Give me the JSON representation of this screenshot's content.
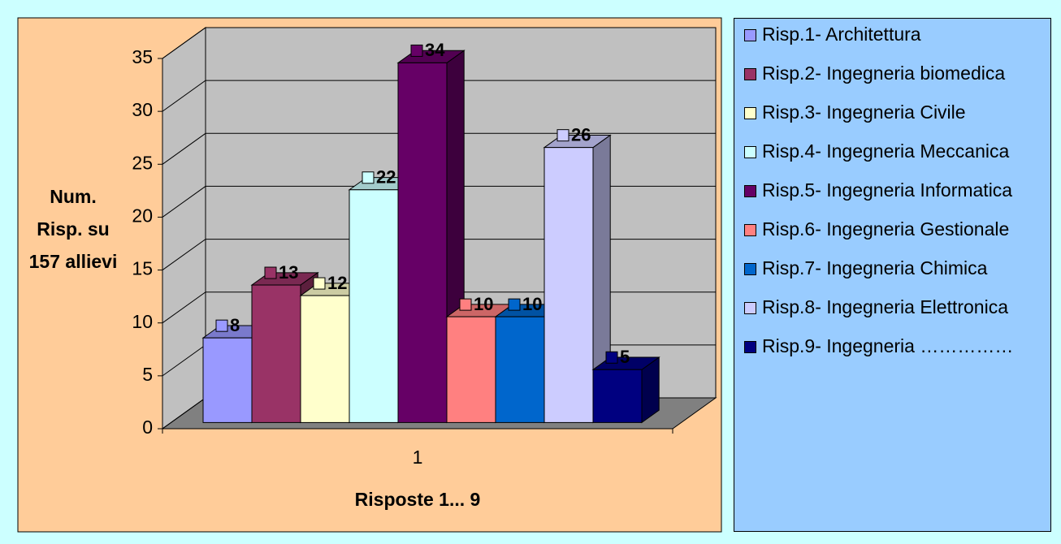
{
  "chart_data": {
    "type": "bar3d",
    "y_label": "Num. Risp. su 157 allievi",
    "x_label": "Risposte 1... 9",
    "categories": [
      "1"
    ],
    "ylim": [
      0,
      35
    ],
    "yticks": [
      0,
      5,
      10,
      15,
      20,
      25,
      30,
      35
    ],
    "grid": true,
    "series": [
      {
        "name": "Risp.1- Architettura",
        "color": "#9999ff",
        "values": [
          8
        ]
      },
      {
        "name": "Risp.2- Ingegneria biomedica",
        "color": "#993366",
        "values": [
          13
        ]
      },
      {
        "name": "Risp.3- Ingegneria Civile",
        "color": "#ffffcc",
        "values": [
          12
        ]
      },
      {
        "name": "Risp.4- Ingegneria Meccanica",
        "color": "#ccffff",
        "values": [
          22
        ]
      },
      {
        "name": "Risp.5- Ingegneria Informatica",
        "color": "#660066",
        "values": [
          34
        ]
      },
      {
        "name": "Risp.6- Ingegneria Gestionale",
        "color": "#ff8080",
        "values": [
          10
        ]
      },
      {
        "name": "Risp.7- Ingegneria Chimica",
        "color": "#0066cc",
        "values": [
          10
        ]
      },
      {
        "name": "Risp.8- Ingegneria Elettronica",
        "color": "#ccccff",
        "values": [
          26
        ]
      },
      {
        "name": "Risp.9- Ingegneria ……………",
        "color": "#000080",
        "values": [
          5
        ]
      }
    ]
  }
}
